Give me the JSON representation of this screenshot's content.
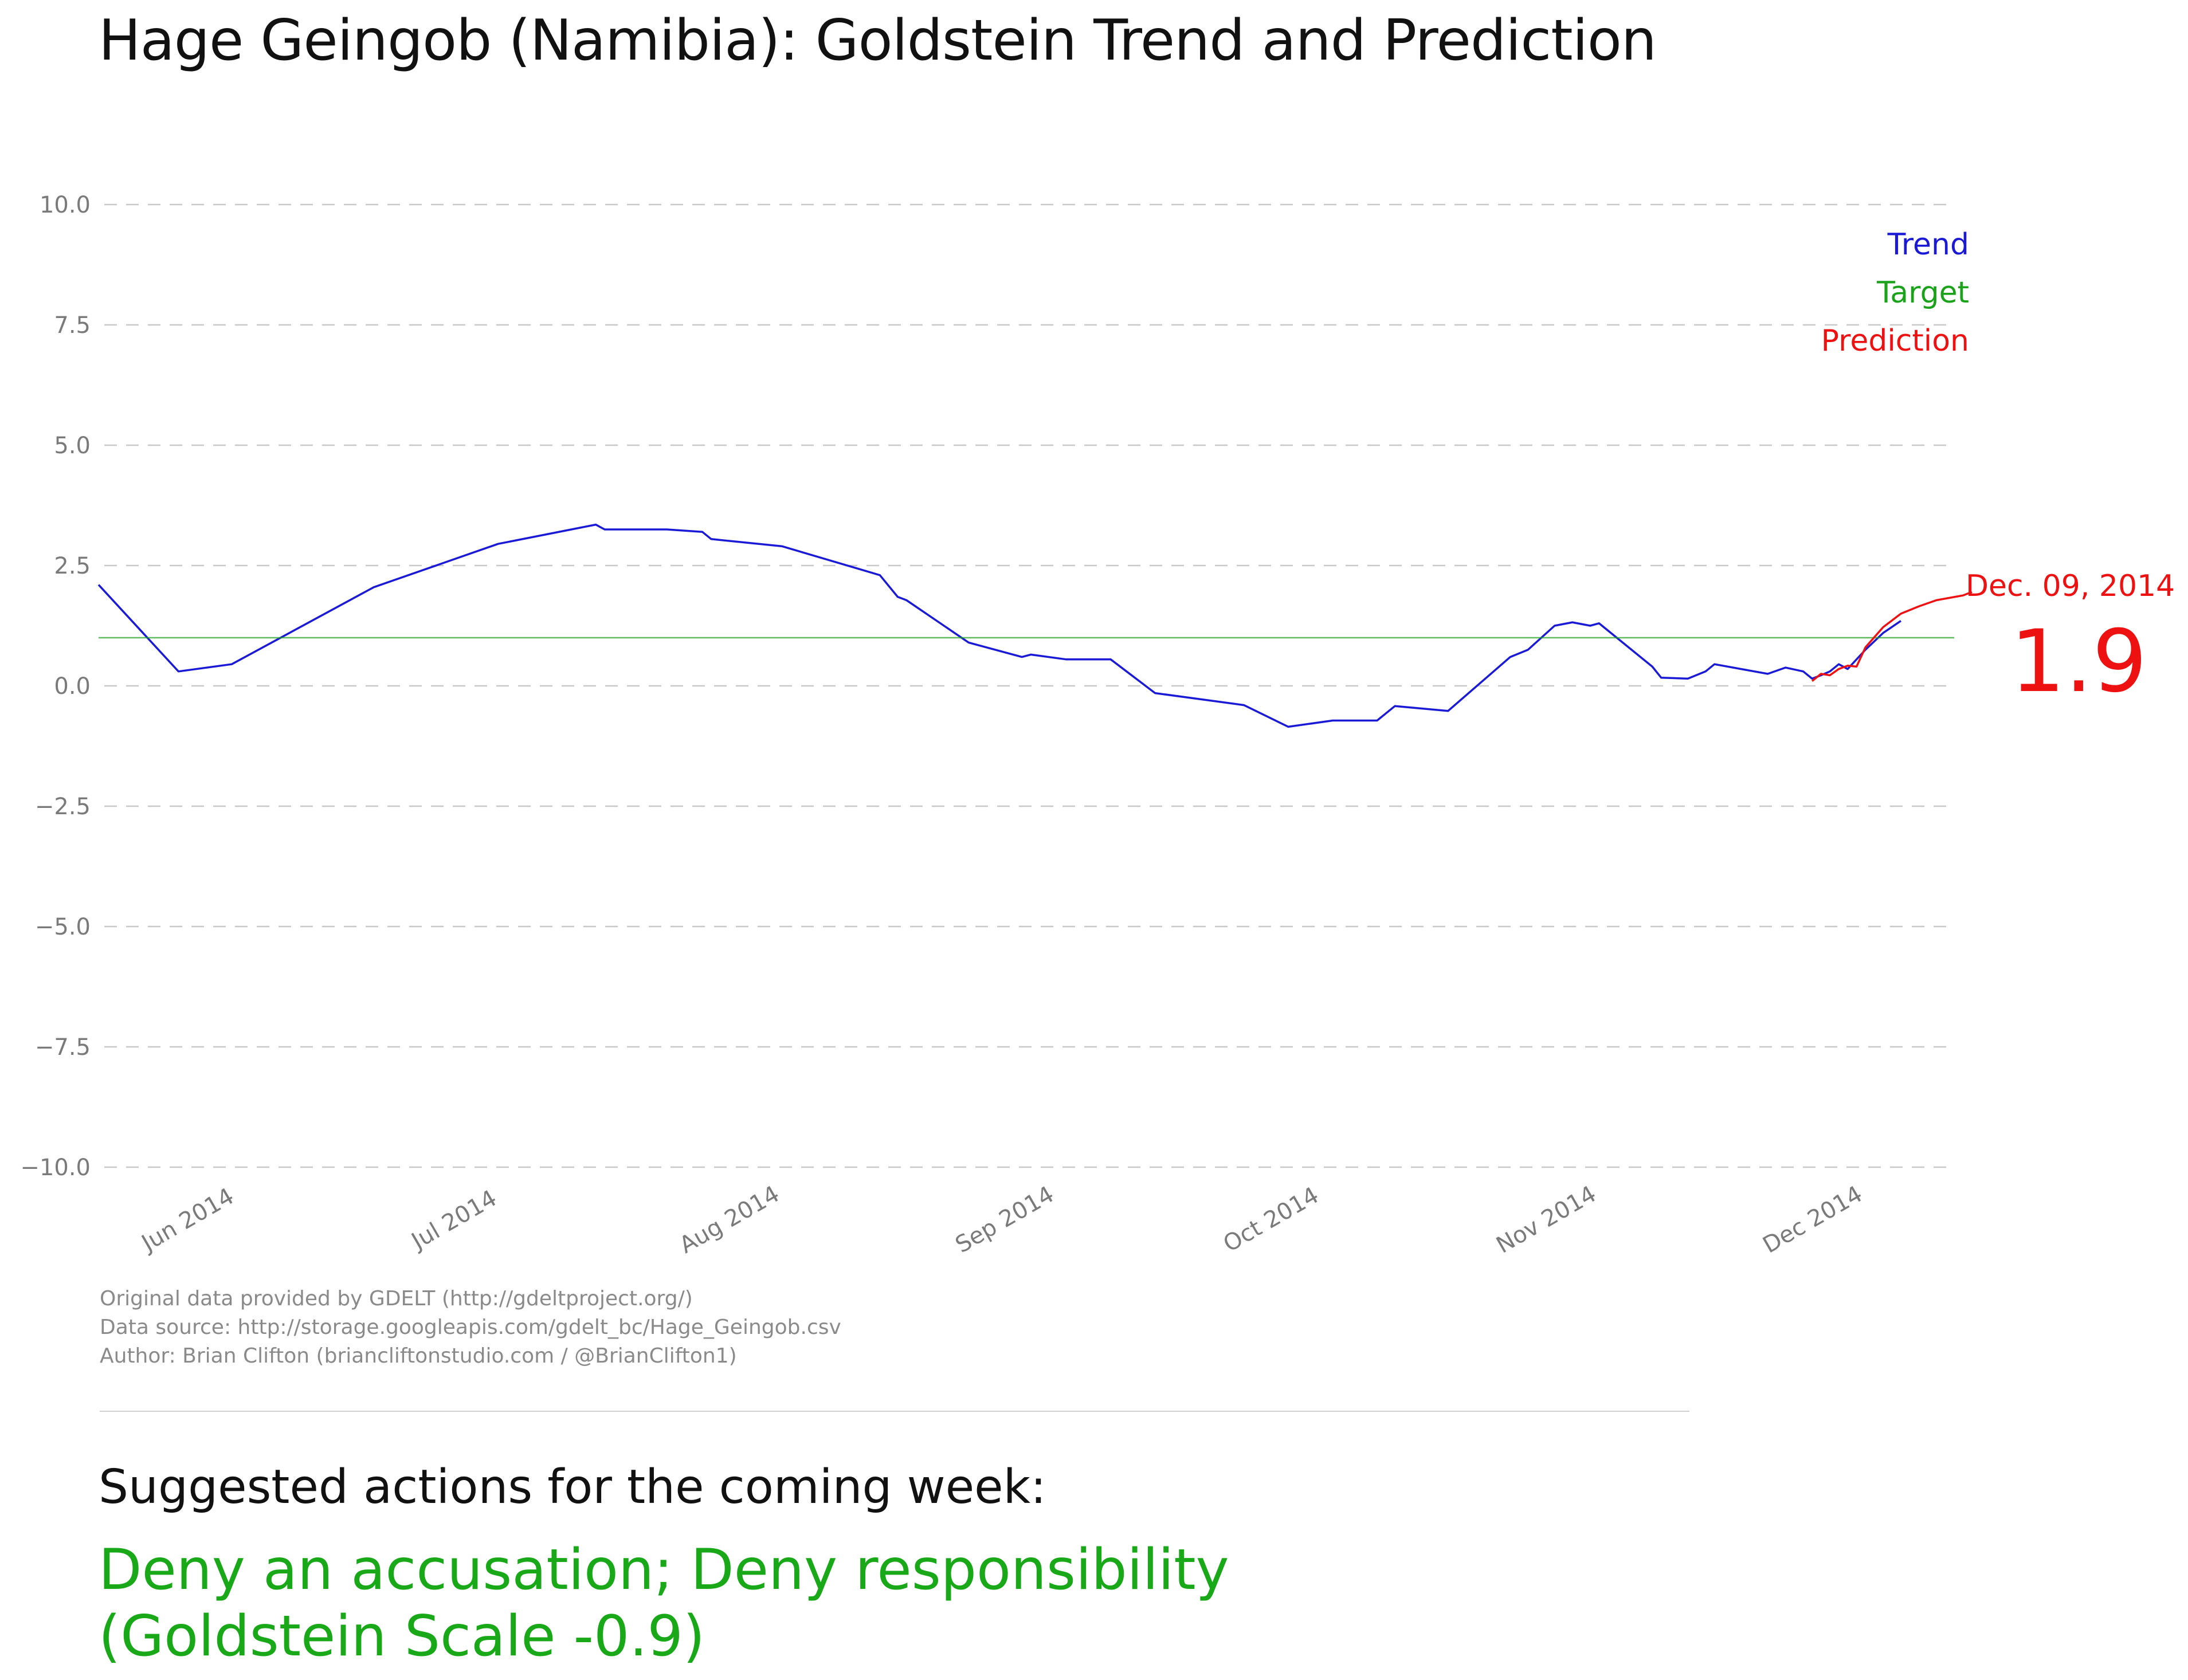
{
  "title": "Hage Geingob (Namibia): Goldstein Trend and Prediction",
  "chart_data": {
    "type": "line",
    "title": "Hage Geingob (Namibia): Goldstein Trend and Prediction",
    "ylim": [
      -10,
      10
    ],
    "y_ticks": [
      "10.0",
      "7.5",
      "5.0",
      "2.5",
      "0.0",
      "−2.5",
      "−5.0",
      "−7.5",
      "−10.0"
    ],
    "y_tick_values": [
      10,
      7.5,
      5,
      2.5,
      0,
      -2.5,
      -5,
      -7.5,
      -10
    ],
    "xlim": [
      "2014-05-17",
      "2014-12-12"
    ],
    "x_ticks": [
      {
        "label": "Jun 2014",
        "date": "2014-06-01"
      },
      {
        "label": "Jul 2014",
        "date": "2014-07-01"
      },
      {
        "label": "Aug 2014",
        "date": "2014-08-01"
      },
      {
        "label": "Sep 2014",
        "date": "2014-09-01"
      },
      {
        "label": "Oct 2014",
        "date": "2014-10-01"
      },
      {
        "label": "Nov 2014",
        "date": "2014-11-01"
      },
      {
        "label": "Dec 2014",
        "date": "2014-12-01"
      }
    ],
    "grid": "horizontal dashed",
    "legend": {
      "placement": "top-right",
      "entries": [
        {
          "name": "Trend",
          "color": "#1a1ad6"
        },
        {
          "name": "Target",
          "color": "#1aa31a"
        },
        {
          "name": "Prediction",
          "color": "#ee1111"
        }
      ]
    },
    "series": [
      {
        "name": "Trend",
        "color": "#1a1ad6",
        "points": [
          [
            "2014-05-17",
            2.1
          ],
          [
            "2014-05-26",
            0.3
          ],
          [
            "2014-06-01",
            0.45
          ],
          [
            "2014-06-17",
            2.05
          ],
          [
            "2014-07-01",
            2.95
          ],
          [
            "2014-07-12",
            3.35
          ],
          [
            "2014-07-13",
            3.25
          ],
          [
            "2014-07-20",
            3.25
          ],
          [
            "2014-07-24",
            3.2
          ],
          [
            "2014-07-25",
            3.05
          ],
          [
            "2014-08-02",
            2.9
          ],
          [
            "2014-08-13",
            2.3
          ],
          [
            "2014-08-15",
            1.85
          ],
          [
            "2014-08-16",
            1.78
          ],
          [
            "2014-08-23",
            0.9
          ],
          [
            "2014-08-29",
            0.6
          ],
          [
            "2014-08-30",
            0.65
          ],
          [
            "2014-09-03",
            0.55
          ],
          [
            "2014-09-08",
            0.55
          ],
          [
            "2014-09-13",
            -0.15
          ],
          [
            "2014-09-23",
            -0.4
          ],
          [
            "2014-09-28",
            -0.85
          ],
          [
            "2014-10-03",
            -0.72
          ],
          [
            "2014-10-08",
            -0.72
          ],
          [
            "2014-10-10",
            -0.42
          ],
          [
            "2014-10-16",
            -0.52
          ],
          [
            "2014-10-23",
            0.6
          ],
          [
            "2014-10-25",
            0.75
          ],
          [
            "2014-10-28",
            1.25
          ],
          [
            "2014-10-30",
            1.32
          ],
          [
            "2014-11-01",
            1.25
          ],
          [
            "2014-11-02",
            1.3
          ],
          [
            "2014-11-08",
            0.4
          ],
          [
            "2014-11-09",
            0.17
          ],
          [
            "2014-11-12",
            0.15
          ],
          [
            "2014-11-14",
            0.3
          ],
          [
            "2014-11-15",
            0.45
          ],
          [
            "2014-11-21",
            0.25
          ],
          [
            "2014-11-23",
            0.38
          ],
          [
            "2014-11-25",
            0.3
          ],
          [
            "2014-11-26",
            0.15
          ],
          [
            "2014-11-27",
            0.22
          ],
          [
            "2014-11-28",
            0.3
          ],
          [
            "2014-11-29",
            0.45
          ],
          [
            "2014-11-30",
            0.35
          ],
          [
            "2014-12-02",
            0.75
          ],
          [
            "2014-12-04",
            1.1
          ],
          [
            "2014-12-06",
            1.35
          ]
        ]
      },
      {
        "name": "Target",
        "color": "#1aa31a",
        "value": 1.0
      },
      {
        "name": "Prediction",
        "color": "#ee1111",
        "points": [
          [
            "2014-11-26",
            0.1
          ],
          [
            "2014-11-27",
            0.25
          ],
          [
            "2014-11-28",
            0.22
          ],
          [
            "2014-11-29",
            0.35
          ],
          [
            "2014-11-30",
            0.42
          ],
          [
            "2014-12-01",
            0.4
          ],
          [
            "2014-12-02",
            0.8
          ],
          [
            "2014-12-04",
            1.22
          ],
          [
            "2014-12-06",
            1.5
          ],
          [
            "2014-12-08",
            1.65
          ],
          [
            "2014-12-10",
            1.78
          ],
          [
            "2014-12-13",
            1.88
          ],
          [
            "2014-12-14",
            1.95
          ]
        ]
      }
    ],
    "annotation": {
      "date_label": "Dec. 09, 2014",
      "value_label": "1.9",
      "color": "#ee1111"
    }
  },
  "credits": [
    "Original data provided by GDELT (http://gdeltproject.org/)",
    "Data source: http://storage.googleapis.com/gdelt_bc/Hage_Geingob.csv",
    "Author: Brian Clifton (briancliftonstudio.com / @BrianClifton1)"
  ],
  "actions": {
    "heading": "Suggested actions for the coming week:",
    "lines": [
      "Deny an accusation; Deny responsibility",
      "(Goldstein Scale -0.9)"
    ]
  }
}
